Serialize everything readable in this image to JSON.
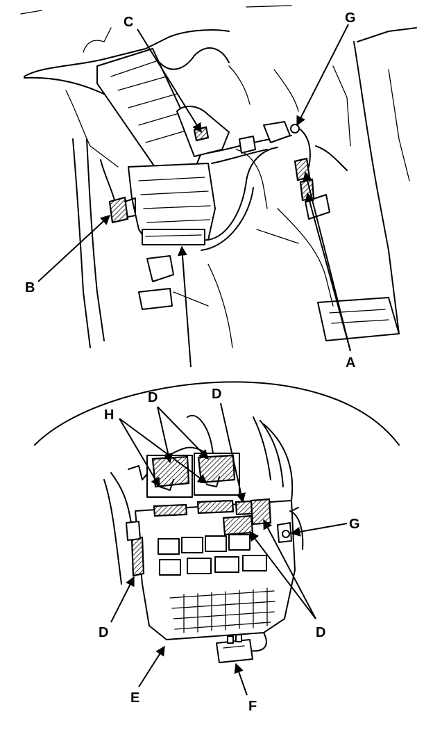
{
  "callouts": {
    "top": {
      "c": "C",
      "g": "G",
      "b": "B",
      "a": "A"
    },
    "detail": {
      "h": "H",
      "d_top_left": "D",
      "d_top_right": "D",
      "g": "G",
      "d_left": "D",
      "d_right": "D",
      "e": "E",
      "f": "F"
    }
  }
}
